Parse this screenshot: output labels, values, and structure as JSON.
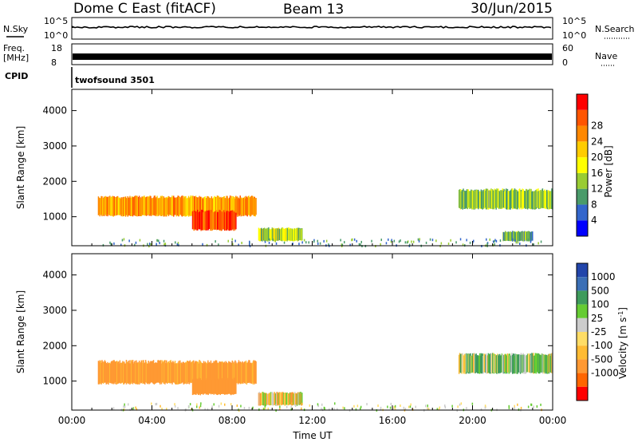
{
  "header": {
    "title": "Dome C East (fitACF)",
    "beam": "Beam 13",
    "date": "30/Jun/2015"
  },
  "params": {
    "nsky_label": "N.Sky",
    "nsky_ticks": [
      "10^5",
      "10^0"
    ],
    "nsearch_label": "N.Search",
    "freq_label_line1": "Freq.",
    "freq_label_line2": "[MHz]",
    "freq_ticks": [
      "18",
      "8"
    ],
    "nave_label": "Nave",
    "nave_ticks": [
      "60",
      "0"
    ],
    "cpid_label": "CPID",
    "cpid_value": "twofsound 3501"
  },
  "colors": {
    "power": [
      "#0000ff",
      "#3366cc",
      "#4a9b6a",
      "#99cc33",
      "#ffff00",
      "#ffcc00",
      "#ff8800",
      "#ff5500",
      "#ff0000"
    ],
    "velocity": [
      "#ff0000",
      "#ff6600",
      "#ff9933",
      "#ffbb33",
      "#ffdd66",
      "#cccccc",
      "#66cc33",
      "#3e9b5c",
      "#3b6fb6",
      "#2245aa"
    ]
  },
  "chart_data": [
    {
      "type": "heatmap",
      "title": "",
      "xlabel": "",
      "ylabel": "Slant Range [km]",
      "xticks": [
        "00:00",
        "04:00",
        "08:00",
        "12:00",
        "16:00",
        "20:00",
        "00:00"
      ],
      "yticks": [
        1000,
        2000,
        3000,
        4000
      ],
      "xlim_hours": [
        0,
        24
      ],
      "ylim_km": [
        180,
        4600
      ],
      "colorbar": {
        "label": "Power [dB]",
        "ticks": [
          4,
          8,
          12,
          16,
          20,
          24,
          28
        ],
        "range": [
          0,
          32
        ]
      },
      "regions": [
        {
          "t0": 1.3,
          "t1": 9.2,
          "r0": 1000,
          "r1": 1600,
          "value": 22
        },
        {
          "t0": 6.0,
          "t1": 8.2,
          "r0": 600,
          "r1": 1200,
          "value": 28
        },
        {
          "t0": 9.3,
          "t1": 11.5,
          "r0": 300,
          "r1": 700,
          "value": 14
        },
        {
          "t0": 19.3,
          "t1": 24.0,
          "r0": 1200,
          "r1": 1800,
          "value": 12
        },
        {
          "t0": 21.5,
          "t1": 23.0,
          "r0": 300,
          "r1": 600,
          "value": 10
        }
      ]
    },
    {
      "type": "heatmap",
      "title": "",
      "xlabel": "Time UT",
      "ylabel": "Slant Range [km]",
      "xticks": [
        "00:00",
        "04:00",
        "08:00",
        "12:00",
        "16:00",
        "20:00",
        "00:00"
      ],
      "yticks": [
        1000,
        2000,
        3000,
        4000
      ],
      "xlim_hours": [
        0,
        24
      ],
      "ylim_km": [
        180,
        4600
      ],
      "colorbar": {
        "label": "Velocity [m s^-1]",
        "ticks": [
          1000,
          500,
          100,
          25,
          -25,
          -100,
          -500,
          -1000
        ]
      },
      "regions": [
        {
          "t0": 1.3,
          "t1": 9.2,
          "r0": 900,
          "r1": 1600,
          "value": -200
        },
        {
          "t0": 6.0,
          "t1": 8.2,
          "r0": 600,
          "r1": 1100,
          "value": -300
        },
        {
          "t0": 9.3,
          "t1": 11.5,
          "r0": 300,
          "r1": 700,
          "value": -50
        },
        {
          "t0": 19.3,
          "t1": 24.0,
          "r0": 1200,
          "r1": 1800,
          "value": 60
        }
      ]
    }
  ]
}
